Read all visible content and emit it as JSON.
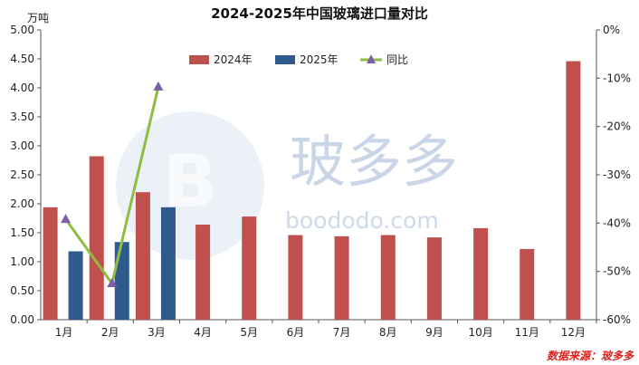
{
  "chart_data": {
    "type": "bar",
    "title": "2024-2025年中国玻璃进口量对比",
    "ylabel": "万吨",
    "categories": [
      "1月",
      "2月",
      "3月",
      "4月",
      "5月",
      "6月",
      "7月",
      "8月",
      "9月",
      "10月",
      "11月",
      "12月"
    ],
    "series": [
      {
        "name": "2024年",
        "type": "bar",
        "axis": "left",
        "color": "#c0504d",
        "values": [
          1.94,
          2.82,
          2.2,
          1.64,
          1.78,
          1.46,
          1.44,
          1.46,
          1.42,
          1.58,
          1.22,
          4.46
        ]
      },
      {
        "name": "2025年",
        "type": "bar",
        "axis": "left",
        "color": "#2e5a8e",
        "values": [
          1.18,
          1.34,
          1.94,
          null,
          null,
          null,
          null,
          null,
          null,
          null,
          null,
          null
        ]
      },
      {
        "name": "同比",
        "type": "line",
        "axis": "right",
        "color": "#8fbc45",
        "marker_color": "#7b5ea7",
        "values": [
          -39.2,
          -52.5,
          -11.8,
          null,
          null,
          null,
          null,
          null,
          null,
          null,
          null,
          null
        ]
      }
    ],
    "y_left": {
      "min": 0,
      "max": 5,
      "step": 0.5,
      "ticks": [
        "0.00",
        "0.50",
        "1.00",
        "1.50",
        "2.00",
        "2.50",
        "3.00",
        "3.50",
        "4.00",
        "4.50",
        "5.00"
      ]
    },
    "y_right": {
      "min": -60,
      "max": 0,
      "step": 10,
      "ticks": [
        "-60%",
        "-50%",
        "-40%",
        "-30%",
        "-20%",
        "-10%",
        "0%"
      ]
    },
    "legend_position": "top-right",
    "grid": false
  },
  "watermark": {
    "brand": "玻多多",
    "url": "boododo.com"
  },
  "source": "数据来源：玻多多"
}
